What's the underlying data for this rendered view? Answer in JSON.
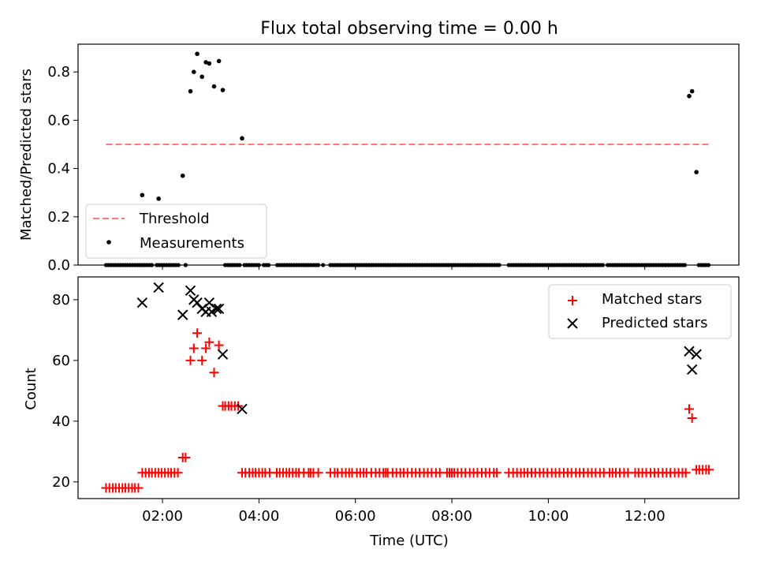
{
  "chart_data": [
    {
      "type": "scatter",
      "title": "Flux total observing time = 0.00 h",
      "xlabel": "",
      "ylabel": "Matched/Predicted stars",
      "xlim": [
        0.25,
        13.95
      ],
      "ylim": [
        0.0,
        0.915
      ],
      "yticks": [
        0.0,
        0.2,
        0.4,
        0.6,
        0.8
      ],
      "ytick_labels": [
        "0.0",
        "0.2",
        "0.4",
        "0.6",
        "0.8"
      ],
      "grid": false,
      "legend_position": "lower-left",
      "series": [
        {
          "name": "Threshold",
          "kind": "dashed-line",
          "color": "#ff7777",
          "x": [
            0.83,
            13.33
          ],
          "y": [
            0.5,
            0.5
          ]
        },
        {
          "name": "Measurements",
          "kind": "points",
          "color": "#000000",
          "points": [
            [
              1.58,
              0.29
            ],
            [
              1.92,
              0.275
            ],
            [
              2.42,
              0.37
            ],
            [
              2.58,
              0.72
            ],
            [
              2.65,
              0.8
            ],
            [
              2.72,
              0.875
            ],
            [
              2.82,
              0.78
            ],
            [
              2.9,
              0.84
            ],
            [
              2.97,
              0.835
            ],
            [
              3.07,
              0.74
            ],
            [
              3.17,
              0.845
            ],
            [
              3.25,
              0.725
            ],
            [
              3.65,
              0.525
            ],
            [
              12.92,
              0.7
            ],
            [
              12.98,
              0.72
            ],
            [
              13.07,
              0.385
            ]
          ],
          "zero_x": [
            0.83,
            0.88,
            0.93,
            0.98,
            1.03,
            1.08,
            1.13,
            1.18,
            1.23,
            1.28,
            1.33,
            1.38,
            1.43,
            1.48,
            1.53,
            1.58,
            1.63,
            1.68,
            1.73,
            1.78,
            1.88,
            1.93,
            1.98,
            2.03,
            2.08,
            2.13,
            2.18,
            2.23,
            2.28,
            2.33,
            2.48,
            3.3,
            3.35,
            3.4,
            3.45,
            3.5,
            3.55,
            3.6,
            3.7,
            3.75,
            3.8,
            3.85,
            3.9,
            3.95,
            4.0,
            4.1,
            4.15,
            4.2,
            4.38,
            4.43,
            4.48,
            4.53,
            4.58,
            4.63,
            4.68,
            4.73,
            4.78,
            4.83,
            4.88,
            4.93,
            4.98,
            5.03,
            5.08,
            5.13,
            5.18,
            5.23,
            5.33,
            5.48,
            5.53,
            5.58,
            5.63,
            5.68,
            5.73,
            5.78,
            5.83,
            5.88,
            5.93,
            5.98,
            6.03,
            6.08,
            6.13,
            6.18,
            6.23,
            6.28,
            6.33,
            6.38,
            6.43,
            6.48,
            6.53,
            6.58,
            6.63,
            6.68,
            6.73,
            6.78,
            6.83,
            6.88,
            6.93,
            6.98,
            7.03,
            7.08,
            7.13,
            7.18,
            7.23,
            7.28,
            7.33,
            7.38,
            7.43,
            7.48,
            7.53,
            7.58,
            7.63,
            7.68,
            7.73,
            7.78,
            7.83,
            7.88,
            7.93,
            7.98,
            8.03,
            8.08,
            8.13,
            8.18,
            8.23,
            8.28,
            8.33,
            8.38,
            8.43,
            8.48,
            8.53,
            8.58,
            8.63,
            8.68,
            8.73,
            8.78,
            8.83,
            8.88,
            8.93,
            8.98,
            9.18,
            9.23,
            9.28,
            9.33,
            9.38,
            9.43,
            9.48,
            9.53,
            9.58,
            9.63,
            9.68,
            9.73,
            9.78,
            9.83,
            9.88,
            9.93,
            9.98,
            10.03,
            10.08,
            10.13,
            10.18,
            10.23,
            10.28,
            10.33,
            10.38,
            10.43,
            10.48,
            10.53,
            10.58,
            10.63,
            10.68,
            10.73,
            10.78,
            10.83,
            10.88,
            10.93,
            10.98,
            11.03,
            11.08,
            11.13,
            11.23,
            11.28,
            11.33,
            11.38,
            11.43,
            11.48,
            11.53,
            11.58,
            11.63,
            11.68,
            11.73,
            11.78,
            11.83,
            11.88,
            11.93,
            11.98,
            12.03,
            12.08,
            12.13,
            12.18,
            12.23,
            12.28,
            12.33,
            12.38,
            12.43,
            12.48,
            12.53,
            12.58,
            12.63,
            12.68,
            12.73,
            12.78,
            12.83,
            13.12,
            13.17,
            13.22,
            13.27,
            13.32
          ]
        }
      ]
    },
    {
      "type": "scatter",
      "title": "",
      "xlabel": "Time (UTC)",
      "ylabel": "Count",
      "xlim": [
        0.25,
        13.95
      ],
      "ylim": [
        14.5,
        87.5
      ],
      "yticks": [
        20,
        40,
        60,
        80
      ],
      "ytick_labels": [
        "20",
        "40",
        "60",
        "80"
      ],
      "xticks": [
        2,
        4,
        6,
        8,
        10,
        12
      ],
      "xtick_labels": [
        "02:00",
        "04:00",
        "06:00",
        "08:00",
        "10:00",
        "12:00"
      ],
      "grid": false,
      "legend_position": "upper-right",
      "series": [
        {
          "name": "Matched stars",
          "marker": "plus",
          "color": "#ff0000",
          "points": [
            [
              0.83,
              18
            ],
            [
              0.9,
              18
            ],
            [
              0.97,
              18
            ],
            [
              1.03,
              18
            ],
            [
              1.1,
              18
            ],
            [
              1.17,
              18
            ],
            [
              1.23,
              18
            ],
            [
              1.3,
              18
            ],
            [
              1.37,
              18
            ],
            [
              1.43,
              18
            ],
            [
              1.5,
              18
            ],
            [
              1.58,
              23
            ],
            [
              1.65,
              23
            ],
            [
              1.72,
              23
            ],
            [
              1.78,
              23
            ],
            [
              1.85,
              23
            ],
            [
              1.92,
              23
            ],
            [
              1.98,
              23
            ],
            [
              2.05,
              23
            ],
            [
              2.12,
              23
            ],
            [
              2.18,
              23
            ],
            [
              2.25,
              23
            ],
            [
              2.32,
              23
            ],
            [
              2.42,
              28
            ],
            [
              2.48,
              28
            ],
            [
              2.58,
              60
            ],
            [
              2.65,
              64
            ],
            [
              2.72,
              69
            ],
            [
              2.82,
              60
            ],
            [
              2.9,
              64
            ],
            [
              2.97,
              66
            ],
            [
              3.07,
              56
            ],
            [
              3.17,
              65
            ],
            [
              3.25,
              45
            ],
            [
              3.3,
              45
            ],
            [
              3.37,
              45
            ],
            [
              3.43,
              45
            ],
            [
              3.5,
              45
            ],
            [
              3.57,
              45
            ],
            [
              3.65,
              23
            ],
            [
              3.72,
              23
            ],
            [
              3.8,
              23
            ],
            [
              3.87,
              23
            ],
            [
              3.93,
              23
            ],
            [
              4.0,
              23
            ],
            [
              4.07,
              23
            ],
            [
              4.13,
              23
            ],
            [
              4.22,
              23
            ],
            [
              4.37,
              23
            ],
            [
              4.43,
              23
            ],
            [
              4.5,
              23
            ],
            [
              4.57,
              23
            ],
            [
              4.63,
              23
            ],
            [
              4.7,
              23
            ],
            [
              4.77,
              23
            ],
            [
              4.83,
              23
            ],
            [
              4.93,
              23
            ],
            [
              5.03,
              23
            ],
            [
              5.07,
              23
            ],
            [
              5.13,
              23
            ],
            [
              5.23,
              23
            ],
            [
              5.48,
              23
            ],
            [
              5.57,
              23
            ],
            [
              5.63,
              23
            ],
            [
              5.72,
              23
            ],
            [
              5.8,
              23
            ],
            [
              5.87,
              23
            ],
            [
              5.93,
              23
            ],
            [
              6.03,
              23
            ],
            [
              6.1,
              23
            ],
            [
              6.17,
              23
            ],
            [
              6.23,
              23
            ],
            [
              6.33,
              23
            ],
            [
              6.42,
              23
            ],
            [
              6.5,
              23
            ],
            [
              6.58,
              23
            ],
            [
              6.63,
              23
            ],
            [
              6.67,
              23
            ],
            [
              6.77,
              23
            ],
            [
              6.85,
              23
            ],
            [
              6.93,
              23
            ],
            [
              7.0,
              23
            ],
            [
              7.08,
              23
            ],
            [
              7.17,
              23
            ],
            [
              7.25,
              23
            ],
            [
              7.33,
              23
            ],
            [
              7.42,
              23
            ],
            [
              7.5,
              23
            ],
            [
              7.58,
              23
            ],
            [
              7.67,
              23
            ],
            [
              7.75,
              23
            ],
            [
              7.9,
              23
            ],
            [
              7.95,
              23
            ],
            [
              8.0,
              23
            ],
            [
              8.05,
              23
            ],
            [
              8.12,
              23
            ],
            [
              8.2,
              23
            ],
            [
              8.28,
              23
            ],
            [
              8.37,
              23
            ],
            [
              8.45,
              23
            ],
            [
              8.53,
              23
            ],
            [
              8.62,
              23
            ],
            [
              8.7,
              23
            ],
            [
              8.78,
              23
            ],
            [
              8.87,
              23
            ],
            [
              8.93,
              23
            ],
            [
              9.18,
              23
            ],
            [
              9.27,
              23
            ],
            [
              9.35,
              23
            ],
            [
              9.43,
              23
            ],
            [
              9.5,
              23
            ],
            [
              9.57,
              23
            ],
            [
              9.65,
              23
            ],
            [
              9.73,
              23
            ],
            [
              9.82,
              23
            ],
            [
              9.9,
              23
            ],
            [
              9.98,
              23
            ],
            [
              10.07,
              23
            ],
            [
              10.15,
              23
            ],
            [
              10.23,
              23
            ],
            [
              10.32,
              23
            ],
            [
              10.4,
              23
            ],
            [
              10.48,
              23
            ],
            [
              10.57,
              23
            ],
            [
              10.65,
              23
            ],
            [
              10.73,
              23
            ],
            [
              10.82,
              23
            ],
            [
              10.9,
              23
            ],
            [
              10.98,
              23
            ],
            [
              11.07,
              23
            ],
            [
              11.15,
              23
            ],
            [
              11.27,
              23
            ],
            [
              11.33,
              23
            ],
            [
              11.4,
              23
            ],
            [
              11.48,
              23
            ],
            [
              11.57,
              23
            ],
            [
              11.65,
              23
            ],
            [
              11.8,
              23
            ],
            [
              11.87,
              23
            ],
            [
              11.95,
              23
            ],
            [
              12.03,
              23
            ],
            [
              12.12,
              23
            ],
            [
              12.2,
              23
            ],
            [
              12.28,
              23
            ],
            [
              12.37,
              23
            ],
            [
              12.45,
              23
            ],
            [
              12.53,
              23
            ],
            [
              12.62,
              23
            ],
            [
              12.7,
              23
            ],
            [
              12.78,
              23
            ],
            [
              12.85,
              23
            ],
            [
              12.92,
              44
            ],
            [
              12.98,
              41
            ],
            [
              13.07,
              24
            ],
            [
              13.13,
              24
            ],
            [
              13.2,
              24
            ],
            [
              13.27,
              24
            ],
            [
              13.33,
              24
            ]
          ]
        },
        {
          "name": "Predicted stars",
          "marker": "cross",
          "color": "#000000",
          "points": [
            [
              1.58,
              79
            ],
            [
              1.92,
              84
            ],
            [
              2.42,
              75
            ],
            [
              2.58,
              83
            ],
            [
              2.65,
              80
            ],
            [
              2.72,
              79
            ],
            [
              2.82,
              77
            ],
            [
              2.9,
              76
            ],
            [
              2.97,
              79
            ],
            [
              3.02,
              76
            ],
            [
              3.12,
              77
            ],
            [
              3.17,
              77
            ],
            [
              3.25,
              62
            ],
            [
              3.65,
              44
            ],
            [
              12.92,
              63
            ],
            [
              12.98,
              57
            ],
            [
              13.07,
              62
            ]
          ]
        }
      ]
    }
  ]
}
